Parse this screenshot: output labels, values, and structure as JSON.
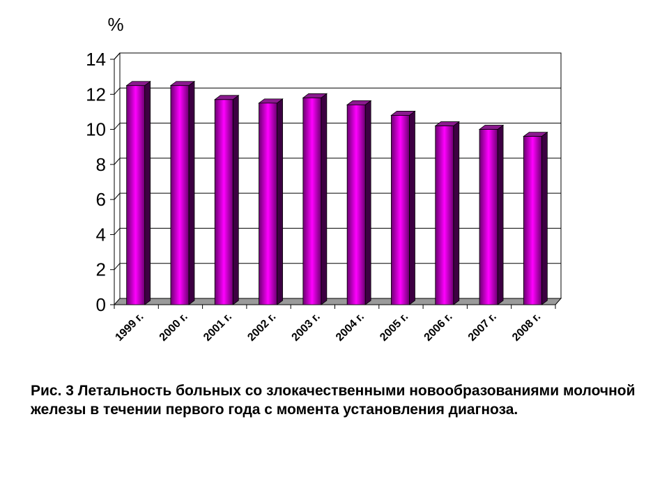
{
  "chart_data": {
    "type": "bar",
    "style": "3d",
    "unit_label": "%",
    "categories": [
      "1999 г.",
      "2000 г.",
      "2001 г.",
      "2002 г.",
      "2003 г.",
      "2004 г.",
      "2005 г.",
      "2006 г.",
      "2007 г.",
      "2008 г."
    ],
    "values": [
      12.5,
      12.5,
      11.7,
      11.5,
      11.8,
      11.4,
      10.8,
      10.2,
      10.0,
      9.6
    ],
    "ylim": [
      0,
      14
    ],
    "yticks": [
      "0",
      "2",
      "4",
      "6",
      "8",
      "10",
      "12",
      "14"
    ],
    "grid": true,
    "legend": "none",
    "colors": {
      "bar_center": "#ff00ff",
      "bar_edge": "#6b0070",
      "bar_side": "#3d0042",
      "bar_top": "#8a1a8e",
      "floor": "#9a9a9a",
      "gridline": "#000000"
    }
  },
  "caption": "Рис. 3  Летальность больных со злокачественными новообразованиями молочной железы в течении первого года с момента установления диагноза."
}
